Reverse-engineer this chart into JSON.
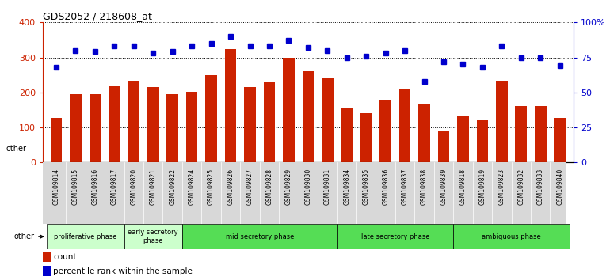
{
  "title": "GDS2052 / 218608_at",
  "samples": [
    "GSM109814",
    "GSM109815",
    "GSM109816",
    "GSM109817",
    "GSM109820",
    "GSM109821",
    "GSM109822",
    "GSM109824",
    "GSM109825",
    "GSM109826",
    "GSM109827",
    "GSM109828",
    "GSM109829",
    "GSM109830",
    "GSM109831",
    "GSM109834",
    "GSM109835",
    "GSM109836",
    "GSM109837",
    "GSM109838",
    "GSM109839",
    "GSM109818",
    "GSM109819",
    "GSM109823",
    "GSM109832",
    "GSM109833",
    "GSM109840"
  ],
  "counts": [
    128,
    195,
    195,
    218,
    232,
    215,
    195,
    202,
    250,
    323,
    215,
    228,
    300,
    260,
    240,
    155,
    140,
    178,
    210,
    168,
    90,
    132,
    120,
    232,
    162,
    162,
    127
  ],
  "percentiles": [
    68,
    80,
    79,
    83,
    83,
    78,
    79,
    83,
    85,
    90,
    83,
    83,
    87,
    82,
    80,
    75,
    76,
    78,
    80,
    58,
    72,
    70,
    68,
    83,
    75,
    75,
    69
  ],
  "bar_color": "#cc2200",
  "dot_color": "#0000cc",
  "ylim_left": [
    0,
    400
  ],
  "ylim_right": [
    0,
    100
  ],
  "yticks_left": [
    0,
    100,
    200,
    300,
    400
  ],
  "yticks_right": [
    0,
    25,
    50,
    75,
    100
  ],
  "ytick_labels_right": [
    "0",
    "25",
    "50",
    "75",
    "100%"
  ],
  "phases": [
    {
      "label": "proliferative phase",
      "start": 0,
      "end": 4,
      "color": "#ccffcc"
    },
    {
      "label": "early secretory\nphase",
      "start": 4,
      "end": 7,
      "color": "#ccffcc"
    },
    {
      "label": "mid secretory phase",
      "start": 7,
      "end": 15,
      "color": "#55dd55"
    },
    {
      "label": "late secretory phase",
      "start": 15,
      "end": 21,
      "color": "#55dd55"
    },
    {
      "label": "ambiguous phase",
      "start": 21,
      "end": 27,
      "color": "#55dd55"
    }
  ],
  "other_label": "other",
  "legend_count_label": "count",
  "legend_pct_label": "percentile rank within the sample",
  "chart_bg": "#ffffff",
  "fig_bg": "#ffffff"
}
